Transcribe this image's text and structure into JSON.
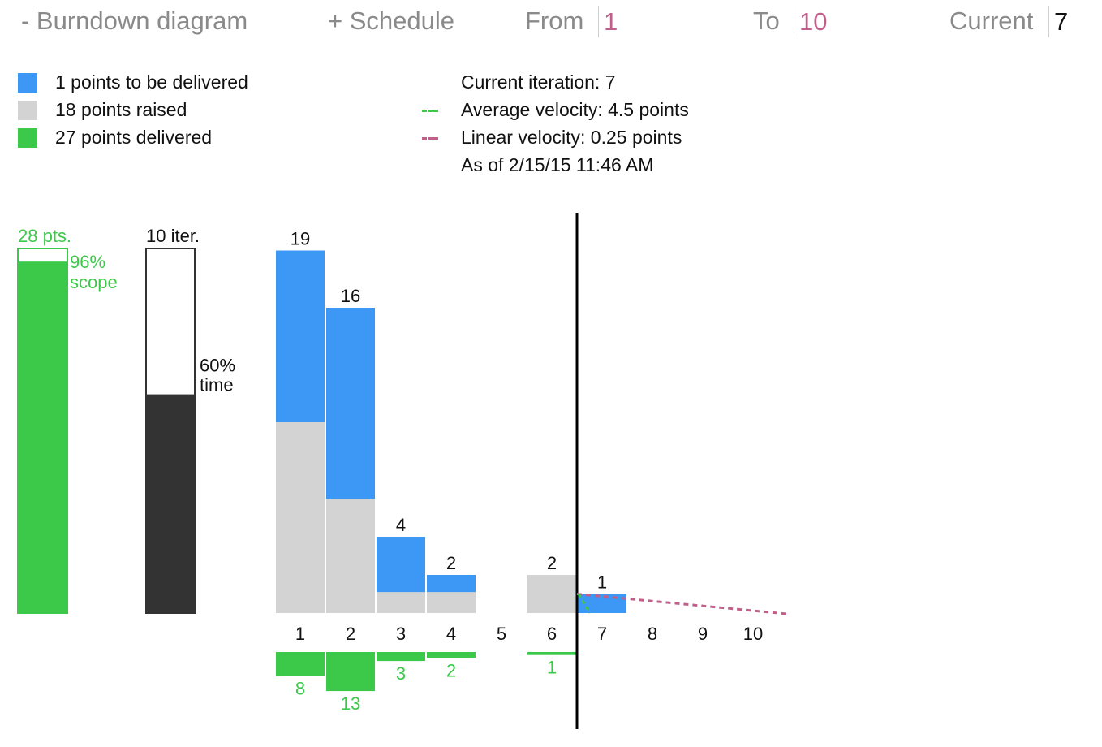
{
  "header": {
    "burndown_label": "- Burndown diagram",
    "schedule_label": "+ Schedule",
    "from_label": "From",
    "from_value": "1",
    "to_label": "To",
    "to_value": "10",
    "current_label": "Current",
    "current_value": "7"
  },
  "legend": {
    "to_deliver": "1 points to be delivered",
    "raised": "18 points raised",
    "delivered": "27 points delivered",
    "current_iteration": "Current iteration: 7",
    "average_velocity": "Average velocity: 4.5 points",
    "linear_velocity": "Linear velocity: 0.25 points",
    "as_of": "As of 2/15/15 11:46 AM"
  },
  "colors": {
    "to_deliver": "#3d97f5",
    "raised": "#d3d3d3",
    "delivered": "#3cc94a",
    "time_fill": "#333333",
    "linear_velocity": "#c0608a",
    "average_velocity": "#3cc94a",
    "header_value": "#c0608a"
  },
  "chart_data": {
    "type": "bar",
    "scope": {
      "total_label": "28 pts.",
      "percent_label": "96%",
      "percent_caption": "scope",
      "fraction": 0.964
    },
    "time": {
      "total_label": "10 iter.",
      "percent_label": "60%",
      "percent_caption": "time",
      "fraction": 0.6
    },
    "categories": [
      "1",
      "2",
      "3",
      "4",
      "5",
      "6",
      "7",
      "8",
      "9",
      "10"
    ],
    "current_iteration": 7,
    "top_labels": [
      "19",
      "16",
      "4",
      "2",
      "",
      "2",
      "1",
      "",
      "",
      ""
    ],
    "series": [
      {
        "name": "points to be delivered",
        "values": [
          9,
          10,
          2.9,
          0.9,
          0,
          0,
          1,
          0,
          0,
          0
        ]
      },
      {
        "name": "points raised",
        "values": [
          10,
          6,
          1.1,
          1.1,
          0,
          2,
          0,
          0,
          0,
          0
        ]
      }
    ],
    "delivered": [
      8,
      13,
      3,
      2,
      0,
      1,
      0,
      0,
      0,
      0
    ],
    "delivered_labels": [
      "8",
      "13",
      "3",
      "2",
      "",
      "1",
      "",
      "",
      "",
      ""
    ],
    "linear_velocity": {
      "start": 1,
      "slope": -0.25
    }
  }
}
